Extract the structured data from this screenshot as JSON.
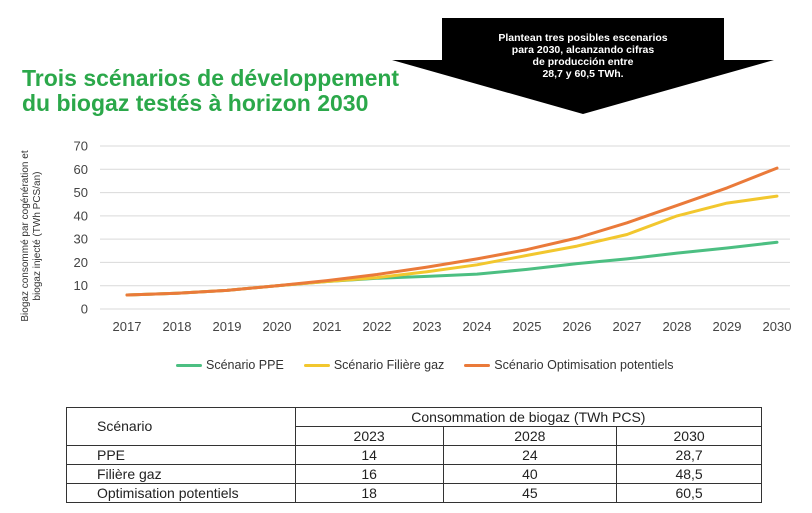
{
  "title": "Trois scénarios de développement du biogaz testés à horizon 2030",
  "callout": "Plantean tres posibles escenarios\npara 2030, alcanzando cifras\nde producción entre\n28,7 y 60,5 TWh.",
  "colors": {
    "title": "#2ba84a",
    "callout_bg": "#000000",
    "ppe": "#4cbf82",
    "filiere": "#f2c72e",
    "optimisation": "#ea7a3a"
  },
  "chart_data": {
    "type": "line",
    "ylabel": "Biogaz consommé par cogénération et\nbiogaz injecté (TWh PCS/an)",
    "xlabel": "",
    "x": [
      2017,
      2018,
      2019,
      2020,
      2021,
      2022,
      2023,
      2024,
      2025,
      2026,
      2027,
      2028,
      2029,
      2030
    ],
    "ylim": [
      0,
      70
    ],
    "yticks": [
      0,
      10,
      20,
      30,
      40,
      50,
      60,
      70
    ],
    "grid": true,
    "legend_position": "bottom",
    "series": [
      {
        "name": "Scénario PPE",
        "color": "#4cbf82",
        "values": [
          6,
          6.8,
          8,
          10,
          11.8,
          13.2,
          14,
          15,
          17,
          19.5,
          21.5,
          24,
          26.2,
          28.7
        ]
      },
      {
        "name": "Scénario Filière gaz",
        "color": "#f2c72e",
        "values": [
          6,
          6.8,
          8,
          10,
          11.8,
          13.5,
          16,
          19,
          23,
          27,
          32,
          40,
          45.5,
          48.5
        ]
      },
      {
        "name": "Scénario Optimisation potentiels",
        "color": "#ea7a3a",
        "values": [
          6,
          6.8,
          8,
          10,
          12.2,
          14.8,
          18,
          21.5,
          25.5,
          30.5,
          37,
          44.5,
          52,
          60.5
        ]
      }
    ]
  },
  "table": {
    "scenario_header": "Scénario",
    "group_header": "Consommation de biogaz (TWh PCS)",
    "years": [
      "2023",
      "2028",
      "2030"
    ],
    "rows": [
      {
        "label": "PPE",
        "values": [
          "14",
          "24",
          "28,7"
        ]
      },
      {
        "label": "Filière gaz",
        "values": [
          "16",
          "40",
          "48,5"
        ]
      },
      {
        "label": "Optimisation potentiels",
        "values": [
          "18",
          "45",
          "60,5"
        ]
      }
    ]
  }
}
